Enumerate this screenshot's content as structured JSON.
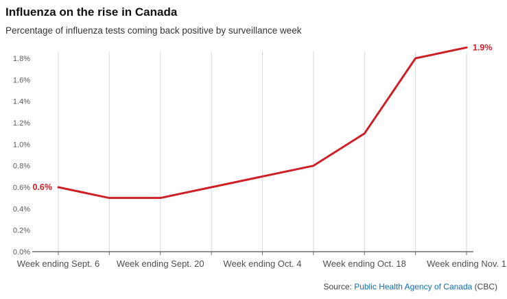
{
  "header": {
    "title": "Influenza on the rise in Canada",
    "subtitle": "Percentage of influenza tests coming back positive by surveillance week"
  },
  "colors": {
    "line_red": "#cc1f26",
    "link_blue": "#0f6db4",
    "grid_gray": "#d8d8d8",
    "axis_gray": "#6e6e6e"
  },
  "chart_data": {
    "type": "line",
    "title": "Influenza on the rise in Canada",
    "subtitle": "Percentage of influenza tests coming back positive by surveillance week",
    "categories": [
      "Week ending Sept. 6",
      "",
      "Week ending Sept. 20",
      "",
      "Week ending Oct. 4",
      "",
      "Week ending Oct. 18",
      "",
      "Week ending Nov. 1"
    ],
    "values": [
      0.6,
      0.5,
      0.5,
      0.6,
      0.7,
      0.8,
      1.1,
      1.8,
      1.9
    ],
    "xlabel": "",
    "ylabel": "",
    "ylim": [
      0.0,
      1.9
    ],
    "y_tick_max": 1.8,
    "y_tick_labels": [
      "0.0%",
      "0.2%",
      "0.4%",
      "0.6%",
      "0.8%",
      "1.0%",
      "1.2%",
      "1.4%",
      "1.6%",
      "1.8%"
    ],
    "grid": "vertical-only",
    "legend": "none",
    "line_color": "#cc1f26",
    "grid_color": "#d8d8d8",
    "axis_color": "#6e6e6e",
    "annotations": [
      {
        "index": 0,
        "text": "0.6%",
        "side": "left"
      },
      {
        "index": 8,
        "text": "1.9%",
        "side": "right"
      }
    ]
  },
  "footer": {
    "source_prefix": "Source: ",
    "source_link": "Public Health Agency of Canada",
    "source_suffix": " (CBC)"
  }
}
